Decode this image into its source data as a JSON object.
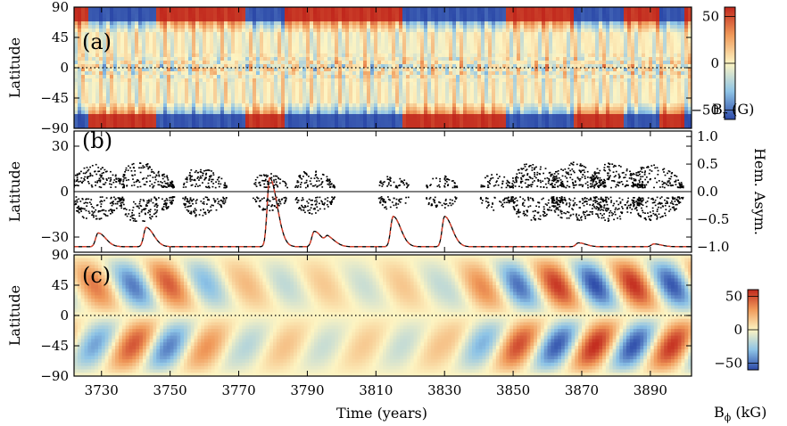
{
  "chart_data": [
    {
      "panel_label": "(a)",
      "type": "heatmap",
      "ylabel": "Latitude",
      "yticks": [
        90,
        45,
        0,
        -45,
        -90
      ],
      "ylim": [
        -90,
        90
      ],
      "xlim": [
        3722,
        3902
      ],
      "colorbar": {
        "label_main": "B",
        "label_sub": "r",
        "label_unit": " (G)",
        "ticks": [
          50,
          0,
          -50
        ],
        "range": [
          -60,
          60
        ]
      },
      "polar_field_reversals_years": [
        3726,
        3746,
        3772,
        3783,
        3818,
        3848,
        3868,
        3882,
        3893,
        3900
      ],
      "colors": {
        "negative": "#2c49a8",
        "neutral": "#fdf4c2",
        "positive": "#c1281d"
      }
    },
    {
      "panel_label": "(b)",
      "type": "scatter",
      "ylabel": "Latitude",
      "yticks": [
        30,
        0,
        -30
      ],
      "ylim": [
        -40,
        40
      ],
      "y2label": "Hem. Asym.",
      "y2ticks": [
        "1.0",
        "0.5",
        "0.0",
        "-0.5",
        "-1.0"
      ],
      "y2lim": [
        -1.1,
        1.1
      ],
      "xlim": [
        3722,
        3902
      ],
      "wing_centers_years": [
        3729,
        3743,
        3760,
        3779,
        3792,
        3815,
        3829,
        3845,
        3857,
        3869,
        3880,
        3892
      ],
      "wing_strength": [
        0.9,
        1.0,
        0.7,
        0.4,
        0.55,
        0.3,
        0.3,
        0.35,
        0.95,
        1.0,
        0.95,
        0.9
      ],
      "asymmetry_spikes": [
        {
          "x": 3729,
          "y": -0.75
        },
        {
          "x": 3743,
          "y": -0.65
        },
        {
          "x": 3779,
          "y": 0.25
        },
        {
          "x": 3792,
          "y": -0.72
        },
        {
          "x": 3796,
          "y": -0.85
        },
        {
          "x": 3815,
          "y": -0.45
        },
        {
          "x": 3830,
          "y": -0.45
        },
        {
          "x": 3869,
          "y": -0.93
        },
        {
          "x": 3891,
          "y": -0.95
        }
      ],
      "baseline_asymmetry": -1.0,
      "colors": {
        "asymmetry_line": "#000000",
        "asymmetry_dash": "#e0402a"
      }
    },
    {
      "panel_label": "(c)",
      "type": "heatmap",
      "ylabel": "Latitude",
      "yticks": [
        90,
        45,
        0,
        -45,
        -90
      ],
      "ylim": [
        -90,
        90
      ],
      "xlabel": "Time (years)",
      "xticks": [
        3730,
        3750,
        3770,
        3790,
        3810,
        3830,
        3850,
        3870,
        3890
      ],
      "xlim": [
        3722,
        3902
      ],
      "period_years": 22.5,
      "amplitude_envelope": [
        [
          3722,
          0.5
        ],
        [
          3745,
          0.8
        ],
        [
          3770,
          0.3
        ],
        [
          3800,
          0.2
        ],
        [
          3830,
          0.25
        ],
        [
          3850,
          0.75
        ],
        [
          3870,
          0.9
        ],
        [
          3902,
          0.85
        ]
      ],
      "colorbar": {
        "label_main": "B",
        "label_sub": "ϕ",
        "label_unit": " (kG)",
        "ticks": [
          50,
          0,
          -50
        ],
        "range": [
          -60,
          60
        ]
      },
      "colors": {
        "negative": "#2c49a8",
        "neutral": "#fdf4c2",
        "positive": "#c1281d"
      }
    }
  ]
}
